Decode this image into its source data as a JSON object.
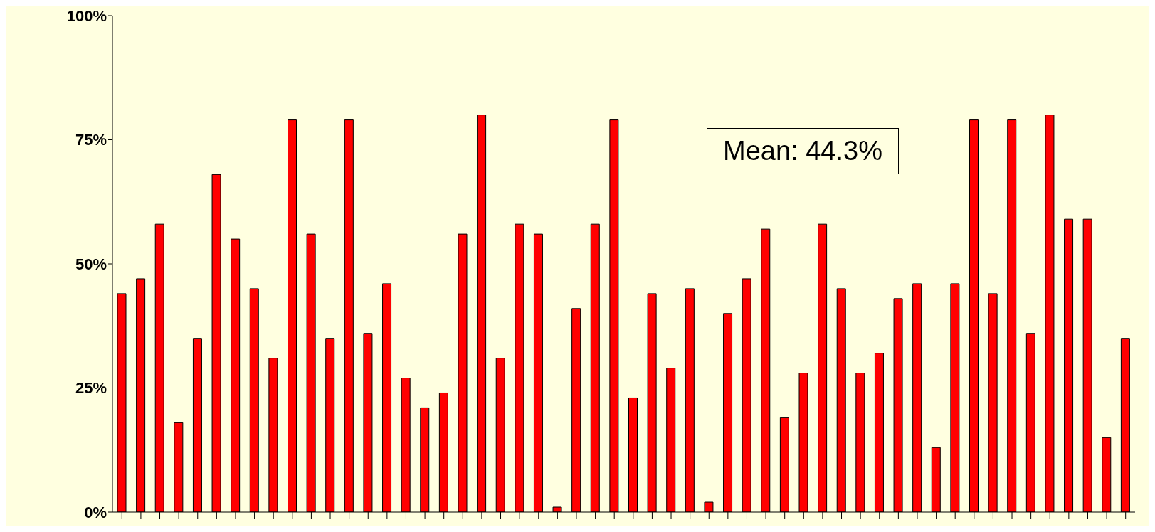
{
  "chart_data": {
    "type": "bar",
    "categories": [
      null,
      null,
      null,
      null,
      null,
      null,
      null,
      null,
      null,
      null,
      null,
      null,
      null,
      null,
      null,
      null,
      null,
      null,
      null,
      null,
      null,
      null,
      null,
      null,
      null,
      null,
      null,
      null,
      null,
      null,
      null,
      null,
      null,
      null,
      null,
      null,
      null,
      null,
      null,
      null,
      null,
      null,
      null,
      null,
      null,
      null,
      null,
      null,
      null,
      null,
      null,
      null,
      null,
      null
    ],
    "values": [
      44,
      47,
      58,
      18,
      35,
      68,
      55,
      45,
      31,
      79,
      56,
      35,
      79,
      36,
      46,
      27,
      21,
      24,
      56,
      80,
      31,
      58,
      56,
      1,
      41,
      58,
      79,
      23,
      44,
      29,
      45,
      2,
      40,
      47,
      57,
      19,
      28,
      58,
      45,
      28,
      32,
      43,
      46,
      13,
      46,
      79,
      44,
      79,
      36,
      80,
      59,
      59,
      15,
      35
    ],
    "color": "#ff0000",
    "ylim": [
      0,
      100
    ],
    "yticks": [
      {
        "value": 0,
        "label": "0%"
      },
      {
        "value": 25,
        "label": "25%"
      },
      {
        "value": 50,
        "label": "50%"
      },
      {
        "value": 75,
        "label": "75%"
      },
      {
        "value": 100,
        "label": "100%"
      }
    ],
    "grid": false,
    "legend": false,
    "annotations": [
      "Mean: 44.3%"
    ]
  }
}
